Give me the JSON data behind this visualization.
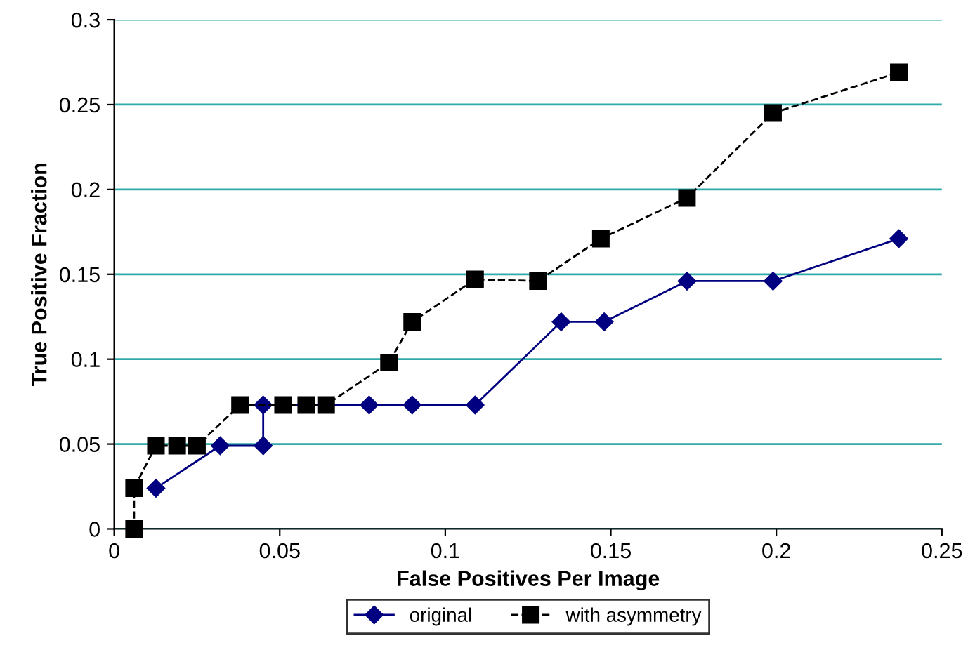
{
  "chart_data": {
    "type": "line",
    "xlabel": "False Positives Per Image",
    "ylabel": "True Positive Fraction",
    "xlim": [
      0,
      0.25
    ],
    "xticks": [
      0,
      0.05,
      0.1,
      0.15,
      0.2,
      0.25
    ],
    "ylim": [
      0,
      0.3
    ],
    "yticks": [
      0,
      0.05,
      0.1,
      0.15,
      0.2,
      0.25,
      0.3
    ],
    "grid": "y",
    "legend": "bottom",
    "series": [
      {
        "name": "original",
        "color": "#000080",
        "marker": "diamond",
        "line_style": "solid",
        "x": [
          0.0126,
          0.032,
          0.045,
          0.045,
          0.077,
          0.09,
          0.109,
          0.135,
          0.148,
          0.173,
          0.199,
          0.237
        ],
        "values": [
          0.024,
          0.049,
          0.049,
          0.073,
          0.073,
          0.073,
          0.073,
          0.122,
          0.122,
          0.146,
          0.146,
          0.171
        ]
      },
      {
        "name": "with asymmetry",
        "color": "#000000",
        "marker": "square",
        "line_style": "dashed",
        "x": [
          0.006,
          0.006,
          0.0126,
          0.019,
          0.025,
          0.038,
          0.051,
          0.058,
          0.064,
          0.083,
          0.09,
          0.109,
          0.128,
          0.147,
          0.173,
          0.199,
          0.237
        ],
        "values": [
          0,
          0.024,
          0.049,
          0.049,
          0.049,
          0.073,
          0.073,
          0.073,
          0.073,
          0.098,
          0.122,
          0.147,
          0.146,
          0.171,
          0.195,
          0.245,
          0.269
        ]
      }
    ]
  }
}
